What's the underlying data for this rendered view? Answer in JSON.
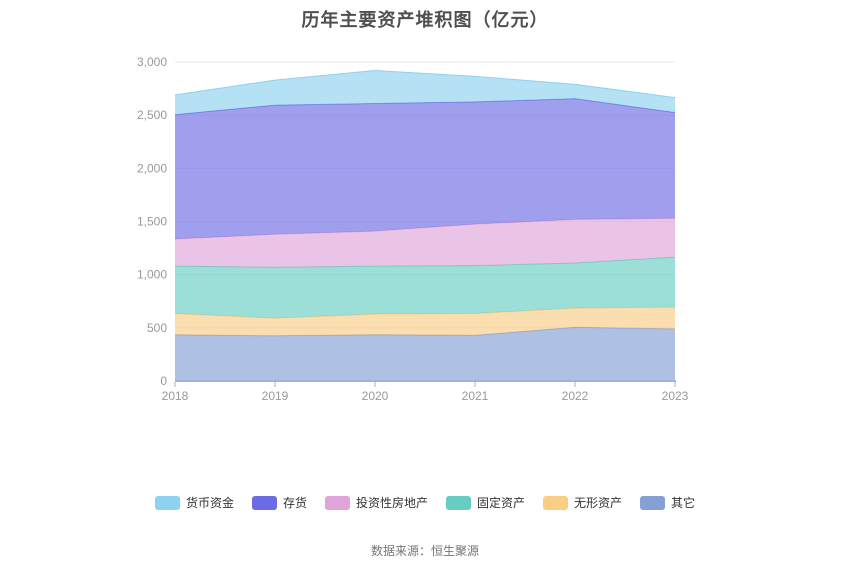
{
  "title": "历年主要资产堆积图（亿元）",
  "footer": {
    "source": "数据来源：恒生聚源"
  },
  "colors": {
    "title_text": "#4F4F4F",
    "axis_line": "#A3B0E8",
    "grid": "#E6EAF4",
    "tick_label": "#999999",
    "legend_text": "#333333",
    "footer_text": "#757575",
    "background": "#FFFFFF"
  },
  "chart_data": {
    "type": "area",
    "stacked": true,
    "stack_order": "last_series_at_bottom",
    "title": "历年主要资产堆积图（亿元）",
    "xlabel": "",
    "ylabel": "",
    "grid": true,
    "legend_position": "bottom",
    "area_opacity": 0.65,
    "categories": [
      "2018",
      "2019",
      "2020",
      "2021",
      "2022",
      "2023"
    ],
    "series": [
      {
        "name": "货币资金",
        "color": "#8ED1F0",
        "values": [
          185,
          235,
          310,
          240,
          135,
          140
        ]
      },
      {
        "name": "存货",
        "color": "#6D6BE3",
        "values": [
          1170,
          1215,
          1200,
          1150,
          1135,
          995
        ]
      },
      {
        "name": "投资性房地产",
        "color": "#DFA5D8",
        "values": [
          255,
          310,
          330,
          390,
          410,
          365
        ]
      },
      {
        "name": "固定资产",
        "color": "#67CDC3",
        "values": [
          445,
          480,
          450,
          450,
          425,
          470
        ]
      },
      {
        "name": "无形资产",
        "color": "#F9CD84",
        "values": [
          200,
          165,
          195,
          205,
          180,
          205
        ]
      },
      {
        "name": "其它",
        "color": "#84A0D4",
        "values": [
          435,
          425,
          435,
          430,
          505,
          490
        ]
      }
    ],
    "stacked_totals": [
      2690,
      2830,
      2920,
      2865,
      2790,
      2665
    ],
    "y_axis": {
      "min": 0,
      "max": 3000,
      "step": 500,
      "tick_labels": [
        "0",
        "500",
        "1,000",
        "1,500",
        "2,000",
        "2,500",
        "3,000"
      ]
    }
  }
}
